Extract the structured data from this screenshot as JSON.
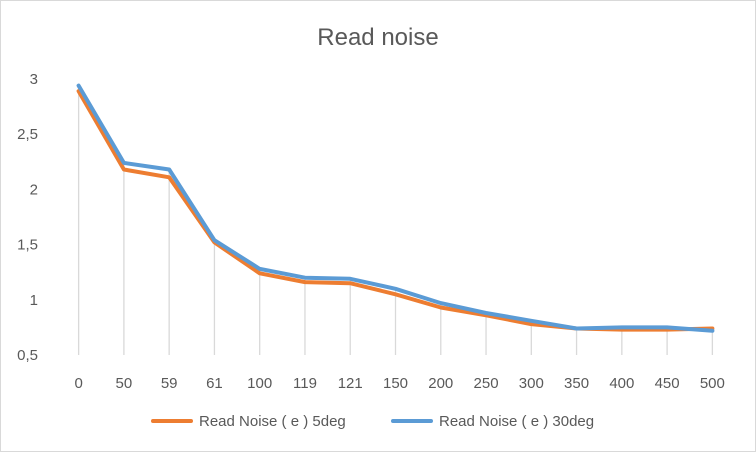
{
  "chart_data": {
    "type": "line",
    "title": "Read noise",
    "xlabel": "",
    "ylabel": "",
    "categories": [
      "0",
      "50",
      "59",
      "61",
      "100",
      "119",
      "121",
      "150",
      "200",
      "250",
      "300",
      "350",
      "400",
      "450",
      "500"
    ],
    "series": [
      {
        "name": "Read Noise ( e ) 5deg",
        "color": "#ED7D31",
        "values": [
          2.89,
          2.18,
          2.11,
          1.52,
          1.24,
          1.16,
          1.15,
          1.05,
          0.93,
          0.86,
          0.78,
          0.74,
          0.73,
          0.73,
          0.74
        ]
      },
      {
        "name": "Read Noise ( e ) 30deg",
        "color": "#5B9BD5",
        "values": [
          2.94,
          2.24,
          2.18,
          1.54,
          1.28,
          1.2,
          1.19,
          1.1,
          0.97,
          0.88,
          0.81,
          0.74,
          0.75,
          0.75,
          0.72
        ]
      }
    ],
    "ylim": [
      0.5,
      3
    ],
    "yticks": [
      "0,5",
      "1",
      "1,5",
      "2",
      "2,5",
      "3"
    ],
    "grid": false,
    "drop_lines": true,
    "legend_position": "bottom"
  }
}
